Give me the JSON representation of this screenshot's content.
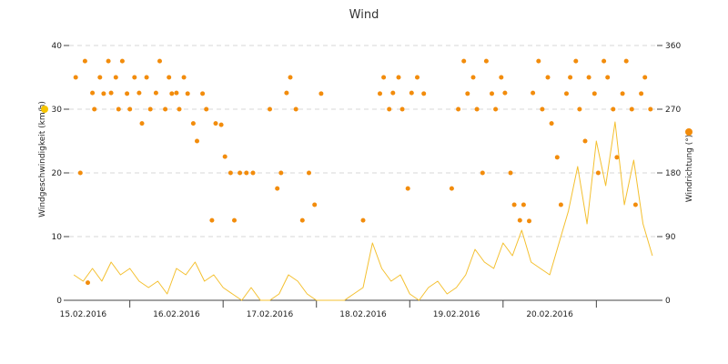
{
  "chart_data": {
    "type": "line",
    "title": "Wind",
    "x_categories": [
      "15.02.2016",
      "16.02.2016",
      "17.02.2016",
      "18.02.2016",
      "19.02.2016",
      "20.02.2016"
    ],
    "left_axis": {
      "label": "Windgeschwindigkeit (km/h)",
      "ylim": [
        0,
        40
      ],
      "ticks": [
        "0",
        "10",
        "20",
        "30",
        "40"
      ]
    },
    "right_axis": {
      "label": "Windrichtung (°)",
      "ylim": [
        0,
        360
      ],
      "ticks": [
        "0",
        "90",
        "180",
        "270",
        "360"
      ]
    },
    "grid": true,
    "colors": {
      "speed": "#f4c030",
      "direction": "#f28c0c",
      "speed_legend": "#f6c400"
    },
    "series": [
      {
        "type": "line",
        "axis": "left",
        "x": [
          14.9,
          15.0,
          15.1,
          15.2,
          15.3,
          15.4,
          15.5,
          15.6,
          15.7,
          15.8,
          15.9,
          16.0,
          16.1,
          16.2,
          16.3,
          16.4,
          16.5,
          16.6,
          16.7,
          16.8,
          16.9,
          17.0,
          17.1,
          17.2,
          17.3,
          17.4,
          17.5,
          17.6,
          17.7,
          17.8,
          17.9,
          18.0,
          18.1,
          18.2,
          18.3,
          18.4,
          18.5,
          18.6,
          18.7,
          18.8,
          18.9,
          19.0,
          19.1,
          19.2,
          19.3,
          19.4,
          19.5,
          19.6,
          19.7,
          19.8,
          19.9,
          20.0,
          20.1,
          20.2,
          20.3,
          20.4,
          20.5,
          20.6,
          20.7,
          20.8,
          20.9,
          21.0,
          21.1
        ],
        "values": [
          4,
          3,
          5,
          3,
          6,
          4,
          5,
          3,
          2,
          3,
          1,
          5,
          4,
          6,
          3,
          4,
          2,
          1,
          0,
          2,
          0,
          0,
          1,
          4,
          3,
          1,
          0,
          0,
          0,
          0,
          1,
          2,
          9,
          5,
          3,
          4,
          1,
          0,
          2,
          3,
          1,
          2,
          4,
          8,
          6,
          5,
          9,
          7,
          11,
          6,
          5,
          4,
          9,
          14,
          21,
          12,
          25,
          18,
          28,
          15,
          22,
          12,
          7
        ]
      },
      {
        "type": "scatter",
        "axis": "right",
        "x": [
          14.92,
          14.97,
          15.02,
          15.05,
          15.1,
          15.12,
          15.18,
          15.22,
          15.27,
          15.3,
          15.35,
          15.38,
          15.42,
          15.47,
          15.5,
          15.55,
          15.6,
          15.63,
          15.68,
          15.72,
          15.78,
          15.82,
          15.88,
          15.92,
          15.95,
          16.0,
          16.03,
          16.08,
          16.12,
          16.18,
          16.22,
          16.28,
          16.32,
          16.38,
          16.42,
          16.48,
          16.52,
          16.58,
          16.62,
          16.68,
          16.75,
          16.82,
          17.0,
          17.08,
          17.12,
          17.18,
          17.22,
          17.28,
          17.35,
          17.42,
          17.48,
          17.55,
          18.0,
          18.18,
          18.22,
          18.28,
          18.32,
          18.38,
          18.42,
          18.48,
          18.52,
          18.58,
          18.65,
          18.95,
          19.02,
          19.08,
          19.12,
          19.18,
          19.22,
          19.28,
          19.32,
          19.38,
          19.42,
          19.48,
          19.52,
          19.58,
          19.62,
          19.68,
          19.72,
          19.78,
          19.82,
          19.88,
          19.92,
          19.98,
          20.02,
          20.08,
          20.12,
          20.18,
          20.22,
          20.28,
          20.32,
          20.38,
          20.42,
          20.48,
          20.52,
          20.58,
          20.62,
          20.68,
          20.72,
          20.78,
          20.82,
          20.88,
          20.92,
          20.98,
          21.02,
          21.08
        ],
        "values": [
          315,
          180,
          338,
          25,
          293,
          270,
          315,
          292,
          338,
          293,
          315,
          270,
          338,
          292,
          270,
          315,
          293,
          250,
          315,
          270,
          293,
          338,
          270,
          315,
          292,
          293,
          270,
          315,
          292,
          250,
          225,
          292,
          270,
          113,
          250,
          248,
          203,
          180,
          113,
          180,
          180,
          180,
          270,
          158,
          180,
          293,
          315,
          270,
          113,
          180,
          135,
          292,
          113,
          292,
          315,
          270,
          293,
          315,
          270,
          158,
          293,
          315,
          292,
          158,
          270,
          338,
          292,
          315,
          270,
          180,
          338,
          292,
          270,
          315,
          293,
          180,
          135,
          113,
          135,
          112,
          293,
          338,
          270,
          315,
          250,
          202,
          135,
          292,
          315,
          338,
          270,
          225,
          315,
          292,
          180,
          338,
          315,
          270,
          202,
          292,
          338,
          270,
          135,
          292,
          315,
          270
        ]
      }
    ]
  }
}
